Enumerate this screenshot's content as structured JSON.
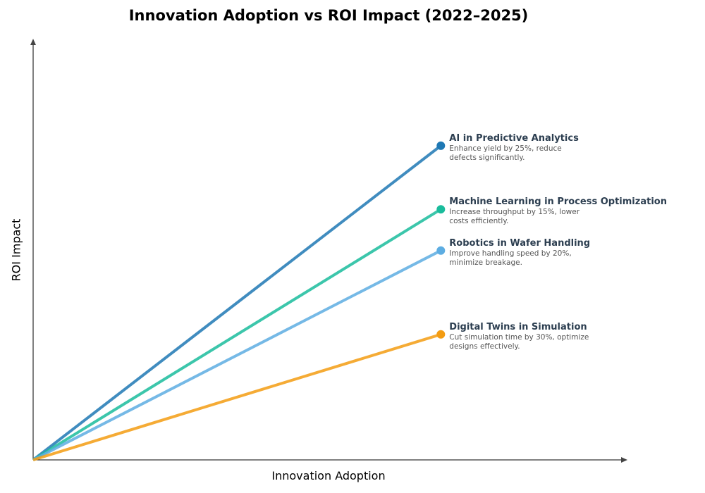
{
  "chart_data": {
    "type": "line",
    "title": "Innovation Adoption vs ROI Impact (2022–2025)",
    "xlabel": "Innovation Adoption",
    "ylabel": "ROI Impact",
    "xlim": [
      0,
      1
    ],
    "ylim": [
      0,
      1
    ],
    "grid": false,
    "tick_labels": false,
    "series": [
      {
        "name": "AI in Predictive Analytics",
        "description": "Enhance yield by 25%, reduce defects significantly.",
        "color": "#1f78b4",
        "x": [
          0,
          0.686
        ],
        "y": [
          0,
          0.746
        ]
      },
      {
        "name": "Machine Learning in Process Optimization",
        "description": "Increase throughput by 15%, lower costs efficiently.",
        "color": "#1abc9c",
        "x": [
          0,
          0.686
        ],
        "y": [
          0,
          0.595
        ]
      },
      {
        "name": "Robotics in Wafer Handling",
        "description": "Improve handling speed by 20%, minimize breakage.",
        "color": "#5dade2",
        "x": [
          0,
          0.686
        ],
        "y": [
          0,
          0.497
        ]
      },
      {
        "name": "Digital Twins in Simulation",
        "description": "Cut simulation time by 30%, optimize designs effectively.",
        "color": "#f39c12",
        "x": [
          0,
          0.686
        ],
        "y": [
          0,
          0.298
        ]
      }
    ]
  }
}
